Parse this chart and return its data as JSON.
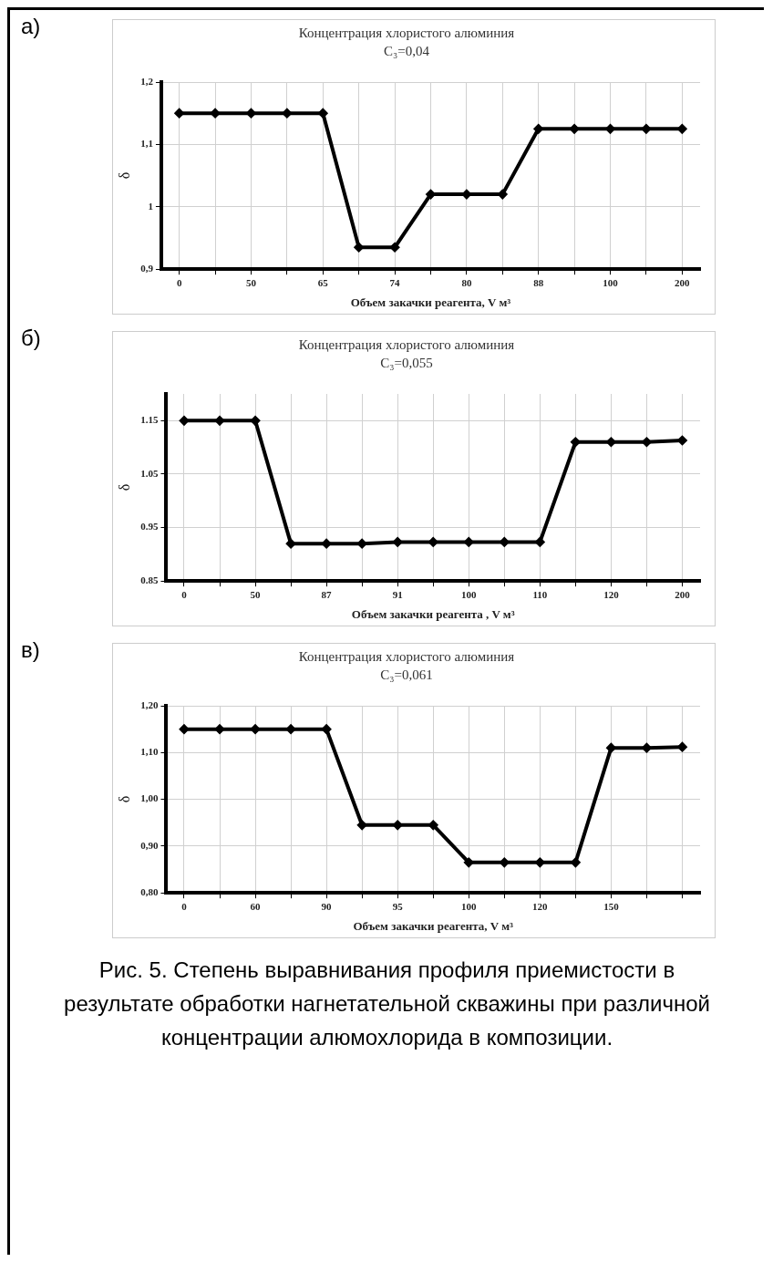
{
  "chart_data": [
    {
      "type": "line",
      "title": "Концентрация хлористого алюминия",
      "subtitle": "C₃=0,04",
      "xlabel": "Объем закачки реагента, V м³",
      "ylabel": "δ",
      "categories": [
        "0",
        null,
        "50",
        null,
        "65",
        null,
        "74",
        null,
        "80",
        null,
        "88",
        null,
        "100",
        null,
        "200"
      ],
      "series": [
        {
          "color": "#000000",
          "values": [
            1.15,
            1.15,
            1.15,
            1.15,
            1.15,
            0.935,
            0.935,
            1.02,
            1.02,
            1.02,
            1.125,
            1.125,
            1.125,
            1.125,
            1.125
          ]
        }
      ],
      "ylim": [
        0.9,
        1.2
      ],
      "yticks": [
        {
          "value": 0.9,
          "label": "0,9"
        },
        1,
        {
          "value": 1.1,
          "label": "1,1"
        },
        {
          "value": 1.2,
          "label": "1,2"
        }
      ],
      "grid": true,
      "legend": false,
      "marker": "diamond",
      "line_style": "solid",
      "annotations": [
        "а)"
      ]
    },
    {
      "type": "line",
      "title": "Концентрация хлористого алюминия",
      "subtitle": "C₃=0,055",
      "xlabel": "Объем закачки реагента , V м³",
      "ylabel": "δ",
      "categories": [
        "0",
        null,
        "50",
        null,
        "87",
        null,
        "91",
        null,
        "100",
        null,
        "110",
        null,
        "120",
        null,
        "200"
      ],
      "series": [
        {
          "color": "#000000",
          "values": [
            1.15,
            1.15,
            1.15,
            0.92,
            0.92,
            0.92,
            0.923,
            0.923,
            0.923,
            0.923,
            0.923,
            1.11,
            1.11,
            1.11,
            1.113
          ]
        }
      ],
      "ylim": [
        0.85,
        1.2
      ],
      "yticks": [
        0.85,
        0.95,
        1.05,
        1.15
      ],
      "grid": true,
      "legend": false,
      "marker": "diamond",
      "line_style": "solid",
      "annotations": [
        "б)"
      ]
    },
    {
      "type": "line",
      "title": "Концентрация хлористого алюминия",
      "subtitle": "C₃=0,061",
      "xlabel": "Объем закачки реагента, V м³",
      "ylabel": "δ",
      "categories": [
        "0",
        null,
        "60",
        null,
        "90",
        null,
        "95",
        null,
        "100",
        null,
        "120",
        null,
        "150",
        null,
        null
      ],
      "series": [
        {
          "color": "#000000",
          "values": [
            1.15,
            1.15,
            1.15,
            1.15,
            1.15,
            0.945,
            0.945,
            0.945,
            0.865,
            0.865,
            0.865,
            0.865,
            1.11,
            1.11,
            1.112
          ]
        }
      ],
      "ylim": [
        0.8,
        1.2
      ],
      "yticks": [
        {
          "value": 0.8,
          "label": "0,80"
        },
        {
          "value": 0.9,
          "label": "0,90"
        },
        {
          "value": 1,
          "label": "1,00"
        },
        {
          "value": 1.1,
          "label": "1,10"
        },
        {
          "value": 1.2,
          "label": "1,20"
        }
      ],
      "grid": true,
      "legend": false,
      "marker": "diamond",
      "line_style": "solid",
      "annotations": [
        "в)",
        "Рис. 5. Степень выравнивания профиля приемистости в результате обработки нагнетательной скважины при различной концентрации алюмохлорида в композиции."
      ]
    }
  ]
}
